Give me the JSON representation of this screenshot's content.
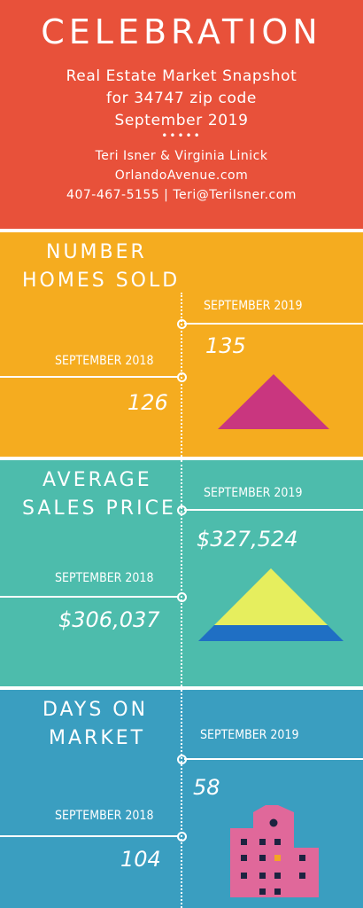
{
  "header": {
    "title": "CELEBRATION",
    "subtitle_line1": "Real Estate Market Snapshot",
    "subtitle_line2": "for 34747 zip code",
    "subtitle_line3": "September 2019",
    "dots": "•••••",
    "agents": "Teri Isner & Virginia Linick",
    "website": "OrlandoAvenue.com",
    "contact": "407-467-5155 | Teri@TeriIsner.com"
  },
  "sections": [
    {
      "title_line1": "NUMBER",
      "title_line2": "HOMES SOLD",
      "current_label": "SEPTEMBER 2019",
      "current_value": "135",
      "previous_label": "SEPTEMBER 2018",
      "previous_value": "126",
      "icon": "pyramid-icon"
    },
    {
      "title_line1": "AVERAGE",
      "title_line2": "SALES PRICE",
      "current_label": "SEPTEMBER 2019",
      "current_value": "$327,524",
      "previous_label": "SEPTEMBER 2018",
      "previous_value": "$306,037",
      "icon": "pyramid-stack-icon"
    },
    {
      "title_line1": "DAYS ON",
      "title_line2": "MARKET",
      "current_label": "SEPTEMBER 2019",
      "current_value": "58",
      "previous_label": "SEPTEMBER 2018",
      "previous_value": "104",
      "icon": "building-icon"
    }
  ],
  "colors": {
    "header_bg": "#e8513a",
    "section1_bg": "#f5ac1f",
    "section2_bg": "#4dbcac",
    "section3_bg": "#3a9ec0",
    "magenta": "#c9367f",
    "yellow": "#e6ee5e",
    "blue": "#1f6fc4",
    "pink": "#e0689a",
    "navy": "#1d2340",
    "orange": "#f4a623"
  }
}
